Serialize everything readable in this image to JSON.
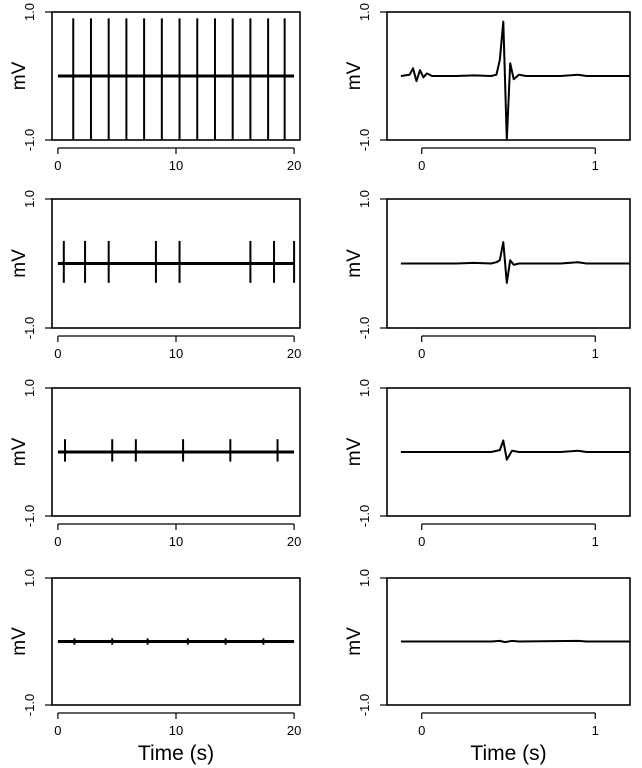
{
  "figure": {
    "xlabel": "Time (s)"
  },
  "chart_data": [
    {
      "type": "line",
      "ylabel": "mV",
      "ylim": [
        -1.0,
        1.0
      ],
      "yticks": [
        "1.0",
        "-1.0"
      ],
      "xlim": [
        -0.5,
        20.5
      ],
      "xticks": [
        0,
        10,
        20
      ],
      "xlabel": "",
      "series": [
        {
          "kind": "spike_train",
          "baseline": 0.0,
          "spike_max": 0.9,
          "spike_min": -1.0,
          "spike_times": [
            1.3,
            2.8,
            4.3,
            5.8,
            7.3,
            8.8,
            10.3,
            11.8,
            13.3,
            14.8,
            16.3,
            17.8,
            19.2
          ]
        }
      ]
    },
    {
      "type": "line",
      "ylabel": "mV",
      "ylim": [
        -1.0,
        1.0
      ],
      "yticks": [
        "1.0",
        "-1.0"
      ],
      "xlim": [
        -0.2,
        1.2
      ],
      "xticks": [
        0,
        1
      ],
      "xlabel": "",
      "series": [
        {
          "kind": "waveform",
          "points": [
            [
              -0.12,
              0
            ],
            [
              -0.07,
              0.02
            ],
            [
              -0.05,
              0.12
            ],
            [
              -0.03,
              -0.08
            ],
            [
              -0.01,
              0.09
            ],
            [
              0.01,
              -0.02
            ],
            [
              0.03,
              0.04
            ],
            [
              0.06,
              0
            ],
            [
              0.2,
              0
            ],
            [
              0.3,
              0.01
            ],
            [
              0.4,
              0
            ],
            [
              0.43,
              0.02
            ],
            [
              0.45,
              0.25
            ],
            [
              0.47,
              0.85
            ],
            [
              0.49,
              -1.0
            ],
            [
              0.51,
              0.2
            ],
            [
              0.53,
              -0.05
            ],
            [
              0.56,
              0.02
            ],
            [
              0.6,
              0
            ],
            [
              0.8,
              0
            ],
            [
              0.9,
              0.02
            ],
            [
              0.95,
              0
            ],
            [
              1.2,
              0
            ]
          ]
        }
      ]
    },
    {
      "type": "line",
      "ylabel": "mV",
      "ylim": [
        -1.0,
        1.0
      ],
      "yticks": [
        "1.0",
        "-1.0"
      ],
      "xlim": [
        -0.5,
        20.5
      ],
      "xticks": [
        0,
        10,
        20
      ],
      "xlabel": "",
      "series": [
        {
          "kind": "spike_train",
          "baseline": 0.0,
          "spike_max": 0.35,
          "spike_min": -0.3,
          "spike_times": [
            0.5,
            2.3,
            4.3,
            8.3,
            10.3,
            16.3,
            18.3,
            20.0
          ]
        }
      ]
    },
    {
      "type": "line",
      "ylabel": "mV",
      "ylim": [
        -1.0,
        1.0
      ],
      "yticks": [
        "1.0",
        "-1.0"
      ],
      "xlim": [
        -0.2,
        1.2
      ],
      "xticks": [
        0,
        1
      ],
      "xlabel": "",
      "series": [
        {
          "kind": "waveform",
          "points": [
            [
              -0.12,
              0
            ],
            [
              0.2,
              0
            ],
            [
              0.3,
              0.01
            ],
            [
              0.4,
              0
            ],
            [
              0.43,
              0.02
            ],
            [
              0.45,
              0.05
            ],
            [
              0.47,
              0.33
            ],
            [
              0.49,
              -0.3
            ],
            [
              0.51,
              0.05
            ],
            [
              0.53,
              -0.02
            ],
            [
              0.56,
              0
            ],
            [
              0.8,
              0
            ],
            [
              0.9,
              0.02
            ],
            [
              0.95,
              0
            ],
            [
              1.2,
              0
            ]
          ]
        }
      ]
    },
    {
      "type": "line",
      "ylabel": "mV",
      "ylim": [
        -1.0,
        1.0
      ],
      "yticks": [
        "1.0",
        "-1.0"
      ],
      "xlim": [
        -0.5,
        20.5
      ],
      "xticks": [
        0,
        10,
        20
      ],
      "xlabel": "",
      "series": [
        {
          "kind": "spike_train",
          "baseline": 0.0,
          "spike_max": 0.2,
          "spike_min": -0.15,
          "spike_times": [
            0.6,
            4.6,
            6.6,
            10.6,
            14.6,
            18.6
          ]
        }
      ]
    },
    {
      "type": "line",
      "ylabel": "mV",
      "ylim": [
        -1.0,
        1.0
      ],
      "yticks": [
        "1.0",
        "-1.0"
      ],
      "xlim": [
        -0.2,
        1.2
      ],
      "xticks": [
        0,
        1
      ],
      "xlabel": "",
      "series": [
        {
          "kind": "waveform",
          "points": [
            [
              -0.12,
              0
            ],
            [
              0.3,
              0
            ],
            [
              0.4,
              0
            ],
            [
              0.45,
              0.03
            ],
            [
              0.47,
              0.18
            ],
            [
              0.49,
              -0.12
            ],
            [
              0.52,
              0.02
            ],
            [
              0.56,
              0
            ],
            [
              0.8,
              0
            ],
            [
              0.9,
              0.02
            ],
            [
              0.95,
              0
            ],
            [
              1.2,
              0
            ]
          ]
        }
      ]
    },
    {
      "type": "line",
      "ylabel": "mV",
      "ylim": [
        -1.0,
        1.0
      ],
      "yticks": [
        "1.0",
        "-1.0"
      ],
      "xlim": [
        -0.5,
        20.5
      ],
      "xticks": [
        0,
        10,
        20
      ],
      "xlabel": "Time (s)",
      "series": [
        {
          "kind": "spike_train",
          "baseline": 0.0,
          "spike_max": 0.05,
          "spike_min": -0.05,
          "spike_times": [
            1.4,
            4.6,
            7.6,
            11.0,
            14.2,
            17.4
          ]
        }
      ]
    },
    {
      "type": "line",
      "ylabel": "mV",
      "ylim": [
        -1.0,
        1.0
      ],
      "yticks": [
        "1.0",
        "-1.0"
      ],
      "xlim": [
        -0.2,
        1.2
      ],
      "xticks": [
        0,
        1
      ],
      "xlabel": "Time (s)",
      "series": [
        {
          "kind": "waveform",
          "points": [
            [
              -0.12,
              0
            ],
            [
              0.4,
              0
            ],
            [
              0.45,
              0.01
            ],
            [
              0.48,
              -0.01
            ],
            [
              0.52,
              0.01
            ],
            [
              0.56,
              0
            ],
            [
              0.9,
              0.01
            ],
            [
              0.95,
              0
            ],
            [
              1.2,
              0
            ]
          ]
        }
      ]
    }
  ]
}
